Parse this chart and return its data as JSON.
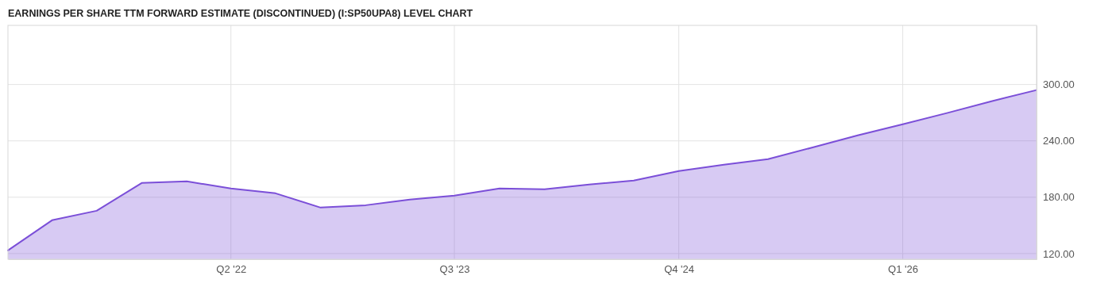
{
  "chart_data": {
    "type": "area",
    "title": "EARNINGS PER SHARE TTM FORWARD ESTIMATE (DISCONTINUED) (I:SP50UPA8) LEVEL CHART",
    "x": [
      "2021-01",
      "2021-04",
      "2021-07",
      "2021-10",
      "2022-01",
      "2022-04",
      "2022-07",
      "2022-10",
      "2023-01",
      "2023-04",
      "2023-07",
      "2023-10",
      "2024-01",
      "2024-04",
      "2024-07",
      "2024-10",
      "2025-01",
      "2025-04",
      "2025-07",
      "2025-10",
      "2026-01",
      "2026-04",
      "2026-07",
      "2026-10"
    ],
    "series": [
      {
        "color": "#7b4fd8",
        "values": [
          123.4,
          155.5,
          165.6,
          195.2,
          196.9,
          189.3,
          184.2,
          169.0,
          171.5,
          177.5,
          181.7,
          189.3,
          188.5,
          193.5,
          197.7,
          207.9,
          214.6,
          220.6,
          233.0,
          245.9,
          257.7,
          269.6,
          282.2,
          294.1
        ]
      }
    ],
    "xlim": [
      "2021-01",
      "2026-10"
    ],
    "xticks": [
      {
        "value": "2022-04",
        "label": "Q2 '22"
      },
      {
        "value": "2023-07",
        "label": "Q3 '23"
      },
      {
        "value": "2024-10",
        "label": "Q4 '24"
      },
      {
        "value": "2026-01",
        "label": "Q1 '26"
      }
    ],
    "ylim": [
      114,
      363
    ],
    "yticks": [
      {
        "value": 120,
        "label": "120.00"
      },
      {
        "value": 180,
        "label": "180.00"
      },
      {
        "value": 240,
        "label": "240.00"
      },
      {
        "value": 300,
        "label": "300.00"
      }
    ],
    "grid": true,
    "marker": "none",
    "line_style": "solid"
  }
}
